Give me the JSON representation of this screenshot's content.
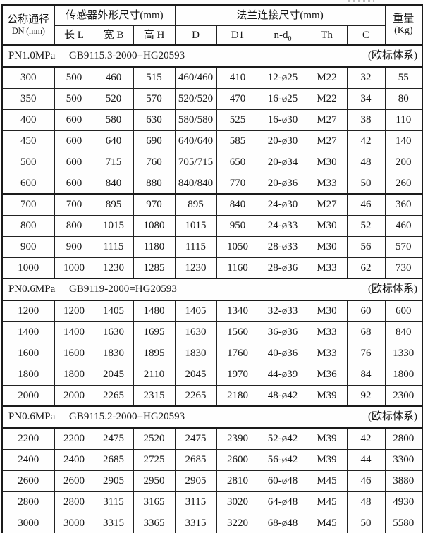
{
  "colors": {
    "border": "#1a1a1a",
    "text": "#161616",
    "background": "#fdfdfd"
  },
  "table": {
    "header": {
      "dn_line1": "公称通径",
      "dn_line2": "DN (mm)",
      "sensor_group": "传感器外形尺寸(mm)",
      "flange_group": "法兰连接尺寸(mm)",
      "weight_line1": "重量",
      "weight_line2": "(Kg)",
      "sub_cols": [
        "长 L",
        "宽 B",
        "高 H",
        "D",
        "D1",
        "n-d",
        "Th",
        "C"
      ],
      "ndo_sub": "0"
    },
    "sections": [
      {
        "pressure": "PN1.0MPa",
        "standard": "GB9115.3-2000=HG20593",
        "note": "(欧标体系)",
        "rows": [
          [
            "300",
            "500",
            "460",
            "515",
            "460/460",
            "410",
            "12-ø25",
            "M22",
            "32",
            "55"
          ],
          [
            "350",
            "500",
            "520",
            "570",
            "520/520",
            "470",
            "16-ø25",
            "M22",
            "34",
            "80"
          ],
          [
            "400",
            "600",
            "580",
            "630",
            "580/580",
            "525",
            "16-ø30",
            "M27",
            "38",
            "110"
          ],
          [
            "450",
            "600",
            "640",
            "690",
            "640/640",
            "585",
            "20-ø30",
            "M27",
            "42",
            "140"
          ],
          [
            "500",
            "600",
            "715",
            "760",
            "705/715",
            "650",
            "20-ø34",
            "M30",
            "48",
            "200"
          ],
          [
            "600",
            "600",
            "840",
            "880",
            "840/840",
            "770",
            "20-ø36",
            "M33",
            "50",
            "260"
          ],
          [
            "700",
            "700",
            "895",
            "970",
            "895",
            "840",
            "24-ø30",
            "M27",
            "46",
            "360"
          ],
          [
            "800",
            "800",
            "1015",
            "1080",
            "1015",
            "950",
            "24-ø33",
            "M30",
            "52",
            "460"
          ],
          [
            "900",
            "900",
            "1115",
            "1180",
            "1115",
            "1050",
            "28-ø33",
            "M30",
            "56",
            "570"
          ],
          [
            "1000",
            "1000",
            "1230",
            "1285",
            "1230",
            "1160",
            "28-ø36",
            "M33",
            "62",
            "730"
          ]
        ]
      },
      {
        "pressure": "PN0.6MPa",
        "standard": "GB9119-2000=HG20593",
        "note": "(欧标体系)",
        "rows": [
          [
            "1200",
            "1200",
            "1405",
            "1480",
            "1405",
            "1340",
            "32-ø33",
            "M30",
            "60",
            "600"
          ],
          [
            "1400",
            "1400",
            "1630",
            "1695",
            "1630",
            "1560",
            "36-ø36",
            "M33",
            "68",
            "840"
          ],
          [
            "1600",
            "1600",
            "1830",
            "1895",
            "1830",
            "1760",
            "40-ø36",
            "M33",
            "76",
            "1330"
          ],
          [
            "1800",
            "1800",
            "2045",
            "2110",
            "2045",
            "1970",
            "44-ø39",
            "M36",
            "84",
            "1800"
          ],
          [
            "2000",
            "2000",
            "2265",
            "2315",
            "2265",
            "2180",
            "48-ø42",
            "M39",
            "92",
            "2300"
          ]
        ]
      },
      {
        "pressure": "PN0.6MPa",
        "standard": "GB9115.2-2000=HG20593",
        "note": "(欧标体系)",
        "rows": [
          [
            "2200",
            "2200",
            "2475",
            "2520",
            "2475",
            "2390",
            "52-ø42",
            "M39",
            "42",
            "2800"
          ],
          [
            "2400",
            "2400",
            "2685",
            "2725",
            "2685",
            "2600",
            "56-ø42",
            "M39",
            "44",
            "3300"
          ],
          [
            "2600",
            "2600",
            "2905",
            "2950",
            "2905",
            "2810",
            "60-ø48",
            "M45",
            "46",
            "3880"
          ],
          [
            "2800",
            "2800",
            "3115",
            "3165",
            "3115",
            "3020",
            "64-ø48",
            "M45",
            "48",
            "4930"
          ],
          [
            "3000",
            "3000",
            "3315",
            "3365",
            "3315",
            "3220",
            "68-ø48",
            "M45",
            "50",
            "5580"
          ]
        ]
      }
    ]
  }
}
